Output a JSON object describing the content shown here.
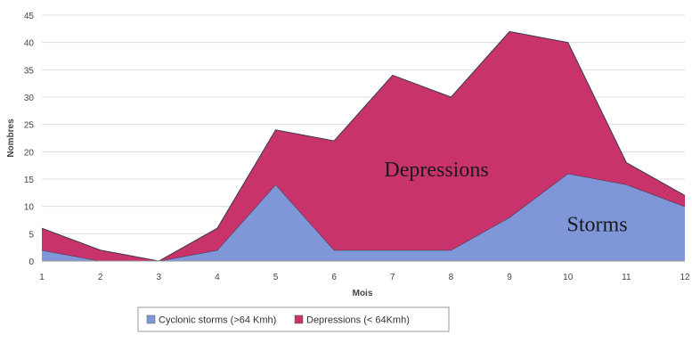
{
  "chart_data": {
    "type": "area",
    "stacked": true,
    "x": [
      1,
      2,
      3,
      4,
      5,
      6,
      7,
      8,
      9,
      10,
      11,
      12
    ],
    "xlabel": "Mois",
    "ylabel": "Nombres",
    "ylim": [
      0,
      45
    ],
    "yticks": [
      0,
      5,
      10,
      15,
      20,
      25,
      30,
      35,
      40,
      45
    ],
    "grid": true,
    "legend_position": "bottom",
    "series": [
      {
        "name": "Cyclonic storms (>64 Kmh)",
        "color": "#7f96d8",
        "values": [
          2,
          0,
          0,
          2,
          14,
          2,
          2,
          2,
          8,
          16,
          14,
          10
        ]
      },
      {
        "name": "Depressions (< 64Kmh)",
        "color": "#c8336b",
        "values": [
          4,
          2,
          0,
          4,
          10,
          20,
          32,
          28,
          34,
          24,
          4,
          2
        ]
      }
    ],
    "annotations": [
      {
        "text": "Depressions",
        "x": 7.75,
        "y": 15.5
      },
      {
        "text": "Storms",
        "x": 10.5,
        "y": 5.5
      }
    ]
  }
}
